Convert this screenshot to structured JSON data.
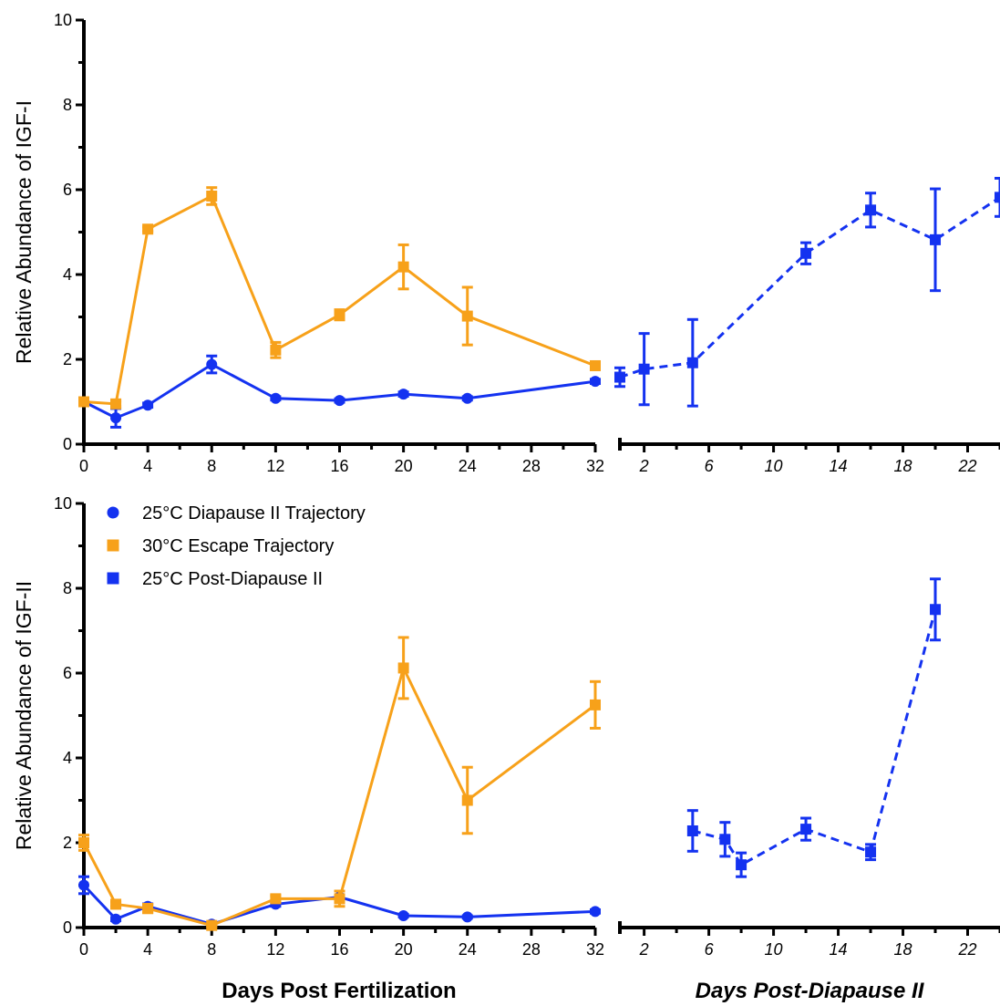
{
  "colors": {
    "diapause": "#1432f0",
    "escape": "#f7a11a",
    "post": "#1432f0",
    "axis": "#000000"
  },
  "legend": [
    {
      "label": "25°C Diapause II Trajectory",
      "marker": "circle",
      "color_key": "diapause"
    },
    {
      "label": "30°C Escape Trajectory",
      "marker": "square",
      "color_key": "escape"
    },
    {
      "label": "25°C Post-Diapause II",
      "marker": "square",
      "color_key": "post"
    }
  ],
  "bottom_titles": {
    "left": "Days Post Fertilization",
    "right": "Days Post-Diapause II"
  },
  "chart_data": [
    {
      "type": "line",
      "ylabel": "Relative Abundance of IGF-I",
      "ylim": [
        0,
        10
      ],
      "yticks": [
        "0",
        "2",
        "4",
        "6",
        "8",
        "10"
      ],
      "left_axis": {
        "xlim": [
          0,
          32
        ],
        "xticks": [
          "0",
          "4",
          "8",
          "12",
          "16",
          "20",
          "24",
          "28",
          "32"
        ]
      },
      "right_axis": {
        "xlim": [
          0.5,
          24
        ],
        "xticks": [
          "2",
          "6",
          "10",
          "14",
          "18",
          "22"
        ]
      },
      "series": [
        {
          "name": "25°C Diapause II Trajectory",
          "axis": "left",
          "marker": "circle",
          "color_key": "diapause",
          "dashed": false,
          "x": [
            0,
            2,
            4,
            8,
            12,
            16,
            20,
            24,
            32
          ],
          "y": [
            1.0,
            0.62,
            0.92,
            1.88,
            1.08,
            1.03,
            1.18,
            1.08,
            1.48
          ],
          "err": [
            0.06,
            0.22,
            0.05,
            0.2,
            0.04,
            0.04,
            0.05,
            0.04,
            0.05
          ]
        },
        {
          "name": "30°C Escape Trajectory",
          "axis": "left",
          "marker": "square",
          "color_key": "escape",
          "dashed": false,
          "x": [
            0,
            2,
            4,
            8,
            12,
            16,
            20,
            24,
            32
          ],
          "y": [
            1.0,
            0.95,
            5.07,
            5.85,
            2.22,
            3.05,
            4.18,
            3.02,
            1.85
          ],
          "err": [
            0.05,
            0.06,
            0.05,
            0.2,
            0.18,
            0.12,
            0.52,
            0.68,
            0.05
          ]
        },
        {
          "name": "25°C Post-Diapause II",
          "axis": "right",
          "marker": "square",
          "color_key": "post",
          "dashed": true,
          "x": [
            0.5,
            2,
            5,
            12,
            16,
            20,
            24
          ],
          "y": [
            1.58,
            1.77,
            1.92,
            4.5,
            5.52,
            4.82,
            5.82
          ],
          "err": [
            0.22,
            0.84,
            1.02,
            0.25,
            0.4,
            1.2,
            0.45
          ]
        }
      ]
    },
    {
      "type": "line",
      "ylabel": "Relative Abundance of IGF-II",
      "ylim": [
        0,
        10
      ],
      "yticks": [
        "0",
        "2",
        "4",
        "6",
        "8",
        "10"
      ],
      "left_axis": {
        "xlim": [
          0,
          32
        ],
        "xticks": [
          "0",
          "4",
          "8",
          "12",
          "16",
          "20",
          "24",
          "28",
          "32"
        ]
      },
      "right_axis": {
        "xlim": [
          0.5,
          24
        ],
        "xticks": [
          "2",
          "6",
          "10",
          "14",
          "18",
          "22"
        ]
      },
      "series": [
        {
          "name": "25°C Diapause II Trajectory",
          "axis": "left",
          "marker": "circle",
          "color_key": "diapause",
          "dashed": false,
          "x": [
            0,
            2,
            4,
            8,
            12,
            16,
            20,
            24,
            32
          ],
          "y": [
            1.0,
            0.2,
            0.5,
            0.08,
            0.55,
            0.72,
            0.28,
            0.25,
            0.38
          ],
          "err": [
            0.2,
            0.04,
            0.06,
            0.03,
            0.05,
            0.05,
            0.03,
            0.03,
            0.04
          ]
        },
        {
          "name": "30°C Escape Trajectory",
          "axis": "left",
          "marker": "square",
          "color_key": "escape",
          "dashed": false,
          "x": [
            0,
            2,
            4,
            8,
            12,
            16,
            20,
            24,
            32
          ],
          "y": [
            2.0,
            0.55,
            0.45,
            0.05,
            0.68,
            0.68,
            6.12,
            3.0,
            5.25
          ],
          "err": [
            0.18,
            0.05,
            0.1,
            0.03,
            0.07,
            0.18,
            0.72,
            0.78,
            0.55
          ]
        },
        {
          "name": "25°C Post-Diapause II",
          "axis": "right",
          "marker": "square",
          "color_key": "post",
          "dashed": true,
          "x": [
            5,
            7,
            8,
            12,
            16,
            20
          ],
          "y": [
            2.28,
            2.08,
            1.48,
            2.32,
            1.78,
            7.5
          ],
          "err": [
            0.48,
            0.4,
            0.28,
            0.26,
            0.18,
            0.72
          ]
        }
      ]
    }
  ]
}
